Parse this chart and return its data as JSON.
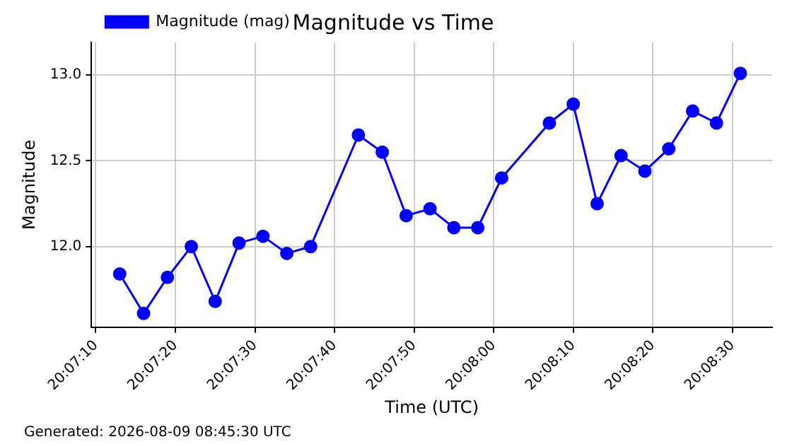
{
  "chart_data": {
    "type": "line",
    "title": "Magnitude vs Time",
    "xlabel": "Time (UTC)",
    "ylabel": "Magnitude",
    "annotations": [
      "Generated: 2026-08-09 08:45:30 UTC"
    ],
    "x": [
      20.120278,
      20.121111,
      20.121944,
      20.122778,
      20.123611,
      20.124444,
      20.125278,
      20.126111,
      20.126944,
      20.128611,
      20.129444,
      20.130278,
      20.131111,
      20.131944,
      20.132778,
      20.133611,
      20.135278,
      20.136111,
      20.136944,
      20.137778,
      20.138611,
      20.139444,
      20.140278,
      20.141111,
      20.141944
    ],
    "series": [
      {
        "name": "Magnitude (mag)",
        "color": "#0000ff",
        "values": [
          11.84,
          11.61,
          11.82,
          12.0,
          11.68,
          12.02,
          12.06,
          11.96,
          12.0,
          12.65,
          12.55,
          12.18,
          12.22,
          12.11,
          12.11,
          12.4,
          12.72,
          12.83,
          12.25,
          12.53,
          12.44,
          12.57,
          12.79,
          12.72,
          13.01
        ]
      }
    ],
    "xlim": [
      20.119292,
      20.143056
    ],
    "xticks": [
      {
        "value": 20.119444,
        "label": "20:07:10"
      },
      {
        "value": 20.122222,
        "label": "20:07:20"
      },
      {
        "value": 20.125,
        "label": "20:07:30"
      },
      {
        "value": 20.127778,
        "label": "20:07:40"
      },
      {
        "value": 20.130556,
        "label": "20:07:50"
      },
      {
        "value": 20.133333,
        "label": "20:08:00"
      },
      {
        "value": 20.136111,
        "label": "20:08:10"
      },
      {
        "value": 20.138889,
        "label": "20:08:20"
      },
      {
        "value": 20.141667,
        "label": "20:08:30"
      }
    ],
    "ylim": [
      11.53,
      13.19
    ],
    "yticks": [
      {
        "value": 12.0,
        "label": "12.0"
      },
      {
        "value": 12.5,
        "label": "12.5"
      },
      {
        "value": 13.0,
        "label": "13.0"
      }
    ],
    "grid": true,
    "legend": "top left",
    "marker": "circle",
    "line_style": "solid"
  }
}
